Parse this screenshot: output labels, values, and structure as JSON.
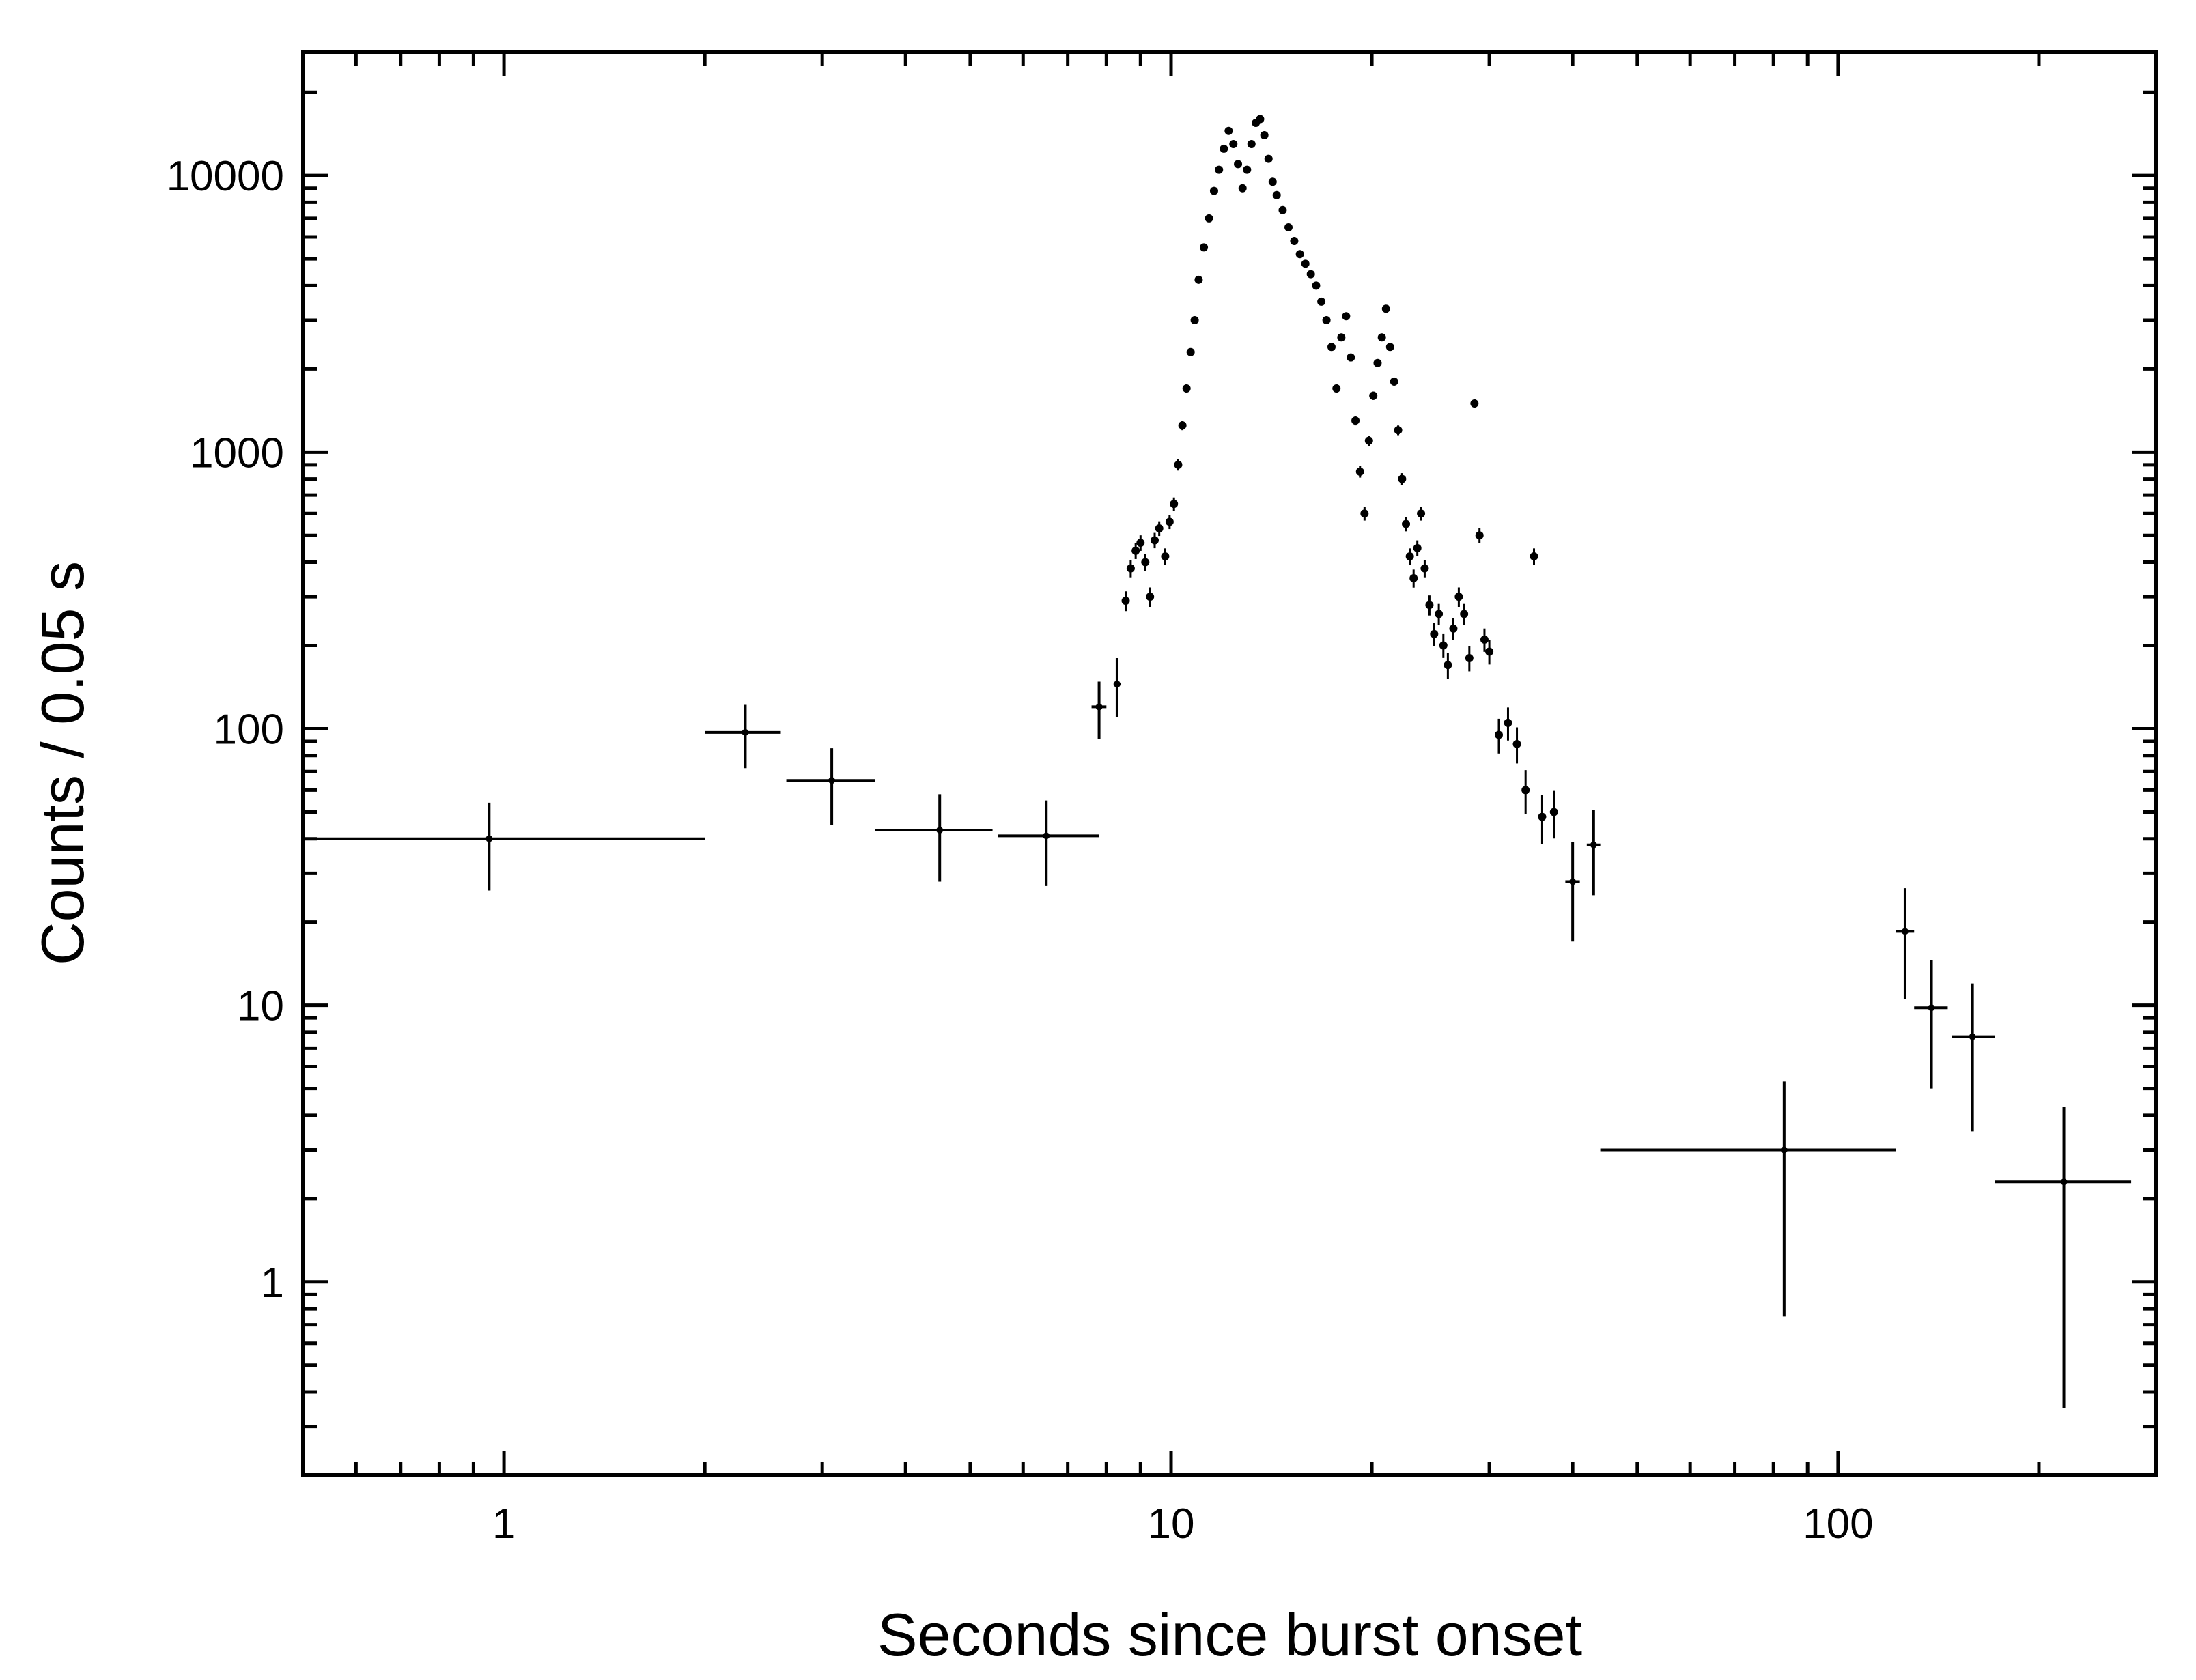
{
  "chart_data": {
    "type": "scatter",
    "title": "",
    "xlabel": "Seconds since burst onset",
    "ylabel": "Counts / 0.05 s",
    "xscale": "log",
    "yscale": "log",
    "xlim": [
      0.5,
      300
    ],
    "ylim": [
      0.2,
      28000
    ],
    "xticks": [
      {
        "value": 1,
        "label": "1"
      },
      {
        "value": 10,
        "label": "10"
      },
      {
        "value": 100,
        "label": "100"
      }
    ],
    "yticks": [
      {
        "value": 1,
        "label": "1"
      },
      {
        "value": 10,
        "label": "10"
      },
      {
        "value": 100,
        "label": "100"
      },
      {
        "value": 1000,
        "label": "1000"
      },
      {
        "value": 10000,
        "label": "10000"
      }
    ],
    "grid": false,
    "legend": "none",
    "color": "#000000",
    "binned_points": [
      {
        "x": 0.95,
        "xlo": 0.5,
        "xhi": 2.0,
        "y": 40,
        "ylo": 26,
        "yhi": 54
      },
      {
        "x": 2.3,
        "xlo": 2.0,
        "xhi": 2.6,
        "y": 97,
        "ylo": 72,
        "yhi": 122
      },
      {
        "x": 3.1,
        "xlo": 2.65,
        "xhi": 3.6,
        "y": 65,
        "ylo": 45,
        "yhi": 85
      },
      {
        "x": 4.5,
        "xlo": 3.6,
        "xhi": 5.4,
        "y": 43,
        "ylo": 28,
        "yhi": 58
      },
      {
        "x": 6.5,
        "xlo": 5.5,
        "xhi": 7.8,
        "y": 41,
        "ylo": 27,
        "yhi": 55
      },
      {
        "x": 7.8,
        "xlo": 7.6,
        "xhi": 8.0,
        "y": 120,
        "ylo": 92,
        "yhi": 148
      },
      {
        "x": 8.3,
        "xlo": 8.2,
        "xhi": 8.4,
        "y": 145,
        "ylo": 110,
        "yhi": 180
      },
      {
        "x": 40.0,
        "xlo": 39.0,
        "xhi": 41.0,
        "y": 28,
        "ylo": 17,
        "yhi": 39
      },
      {
        "x": 43.0,
        "xlo": 42.0,
        "xhi": 44.0,
        "y": 38,
        "ylo": 25,
        "yhi": 51
      },
      {
        "x": 83.0,
        "xlo": 44.0,
        "xhi": 122.0,
        "y": 3.0,
        "ylo": 0.75,
        "yhi": 5.3
      },
      {
        "x": 126.0,
        "xlo": 122.0,
        "xhi": 130.0,
        "y": 18.5,
        "ylo": 10.5,
        "yhi": 26.5
      },
      {
        "x": 138.0,
        "xlo": 130.0,
        "xhi": 146.0,
        "y": 9.8,
        "ylo": 5.0,
        "yhi": 14.6
      },
      {
        "x": 159.0,
        "xlo": 148.0,
        "xhi": 172.0,
        "y": 7.7,
        "ylo": 3.5,
        "yhi": 12.0
      },
      {
        "x": 218.0,
        "xlo": 172.0,
        "xhi": 275.0,
        "y": 2.3,
        "ylo": 0.35,
        "yhi": 4.3
      }
    ],
    "dense_points": [
      {
        "x": 8.55,
        "y": 290
      },
      {
        "x": 8.7,
        "y": 380
      },
      {
        "x": 8.85,
        "y": 440
      },
      {
        "x": 9.0,
        "y": 470
      },
      {
        "x": 9.15,
        "y": 400
      },
      {
        "x": 9.3,
        "y": 300
      },
      {
        "x": 9.45,
        "y": 480
      },
      {
        "x": 9.6,
        "y": 530
      },
      {
        "x": 9.8,
        "y": 420
      },
      {
        "x": 9.95,
        "y": 560
      },
      {
        "x": 10.1,
        "y": 650
      },
      {
        "x": 10.25,
        "y": 900
      },
      {
        "x": 10.4,
        "y": 1250
      },
      {
        "x": 10.55,
        "y": 1700
      },
      {
        "x": 10.7,
        "y": 2300
      },
      {
        "x": 10.85,
        "y": 3000
      },
      {
        "x": 11.0,
        "y": 4200
      },
      {
        "x": 11.2,
        "y": 5500
      },
      {
        "x": 11.4,
        "y": 7000
      },
      {
        "x": 11.6,
        "y": 8800
      },
      {
        "x": 11.8,
        "y": 10500
      },
      {
        "x": 12.0,
        "y": 12500
      },
      {
        "x": 12.2,
        "y": 14500
      },
      {
        "x": 12.4,
        "y": 13000
      },
      {
        "x": 12.6,
        "y": 11000
      },
      {
        "x": 12.8,
        "y": 9000
      },
      {
        "x": 13.0,
        "y": 10500
      },
      {
        "x": 13.2,
        "y": 13000
      },
      {
        "x": 13.4,
        "y": 15500
      },
      {
        "x": 13.6,
        "y": 16000
      },
      {
        "x": 13.8,
        "y": 14000
      },
      {
        "x": 14.0,
        "y": 11500
      },
      {
        "x": 14.2,
        "y": 9500
      },
      {
        "x": 14.4,
        "y": 8500
      },
      {
        "x": 14.7,
        "y": 7500
      },
      {
        "x": 15.0,
        "y": 6500
      },
      {
        "x": 15.3,
        "y": 5800
      },
      {
        "x": 15.6,
        "y": 5200
      },
      {
        "x": 15.9,
        "y": 4800
      },
      {
        "x": 16.2,
        "y": 4400
      },
      {
        "x": 16.5,
        "y": 4000
      },
      {
        "x": 16.8,
        "y": 3500
      },
      {
        "x": 17.1,
        "y": 3000
      },
      {
        "x": 17.4,
        "y": 2400
      },
      {
        "x": 17.7,
        "y": 1700
      },
      {
        "x": 18.0,
        "y": 2600
      },
      {
        "x": 18.3,
        "y": 3100
      },
      {
        "x": 18.6,
        "y": 2200
      },
      {
        "x": 18.9,
        "y": 1300
      },
      {
        "x": 19.2,
        "y": 850
      },
      {
        "x": 19.5,
        "y": 600
      },
      {
        "x": 19.8,
        "y": 1100
      },
      {
        "x": 20.1,
        "y": 1600
      },
      {
        "x": 20.4,
        "y": 2100
      },
      {
        "x": 20.7,
        "y": 2600
      },
      {
        "x": 21.0,
        "y": 3300
      },
      {
        "x": 21.3,
        "y": 2400
      },
      {
        "x": 21.6,
        "y": 1800
      },
      {
        "x": 21.9,
        "y": 1200
      },
      {
        "x": 22.2,
        "y": 800
      },
      {
        "x": 22.5,
        "y": 550
      },
      {
        "x": 22.8,
        "y": 420
      },
      {
        "x": 23.1,
        "y": 350
      },
      {
        "x": 23.4,
        "y": 450
      },
      {
        "x": 23.7,
        "y": 600
      },
      {
        "x": 24.0,
        "y": 380
      },
      {
        "x": 24.4,
        "y": 280
      },
      {
        "x": 24.8,
        "y": 220
      },
      {
        "x": 25.2,
        "y": 260
      },
      {
        "x": 25.6,
        "y": 200
      },
      {
        "x": 26.0,
        "y": 170
      },
      {
        "x": 26.5,
        "y": 230
      },
      {
        "x": 27.0,
        "y": 300
      },
      {
        "x": 27.5,
        "y": 260
      },
      {
        "x": 28.0,
        "y": 180
      },
      {
        "x": 28.5,
        "y": 1500
      },
      {
        "x": 29.0,
        "y": 500
      },
      {
        "x": 29.5,
        "y": 210
      },
      {
        "x": 30.0,
        "y": 190
      },
      {
        "x": 31.0,
        "y": 95
      },
      {
        "x": 32.0,
        "y": 105
      },
      {
        "x": 33.0,
        "y": 88
      },
      {
        "x": 34.0,
        "y": 60
      },
      {
        "x": 35.0,
        "y": 420
      },
      {
        "x": 36.0,
        "y": 48
      },
      {
        "x": 37.5,
        "y": 50
      }
    ],
    "annotations": []
  }
}
